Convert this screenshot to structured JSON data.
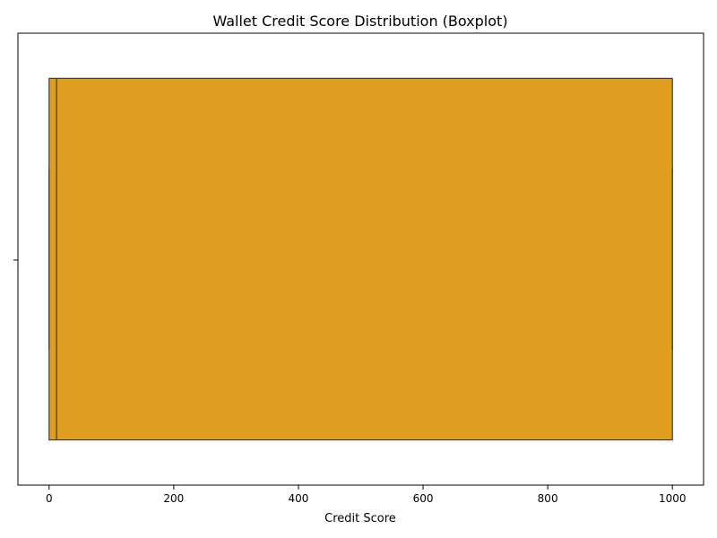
{
  "chart_data": {
    "type": "boxplot",
    "title": "Wallet Credit Score Distribution (Boxplot)",
    "xlabel": "Credit Score",
    "ylabel": "",
    "orientation": "horizontal",
    "xlim": [
      -50,
      1050
    ],
    "xticks": [
      0,
      200,
      400,
      600,
      800,
      1000
    ],
    "grid": false,
    "boxes": [
      {
        "whisker_low": 0,
        "q1": 0,
        "median": 12,
        "q3": 1000,
        "whisker_high": 1000,
        "color": "#e09e20",
        "edge_color": "#3f3f3f"
      }
    ]
  }
}
